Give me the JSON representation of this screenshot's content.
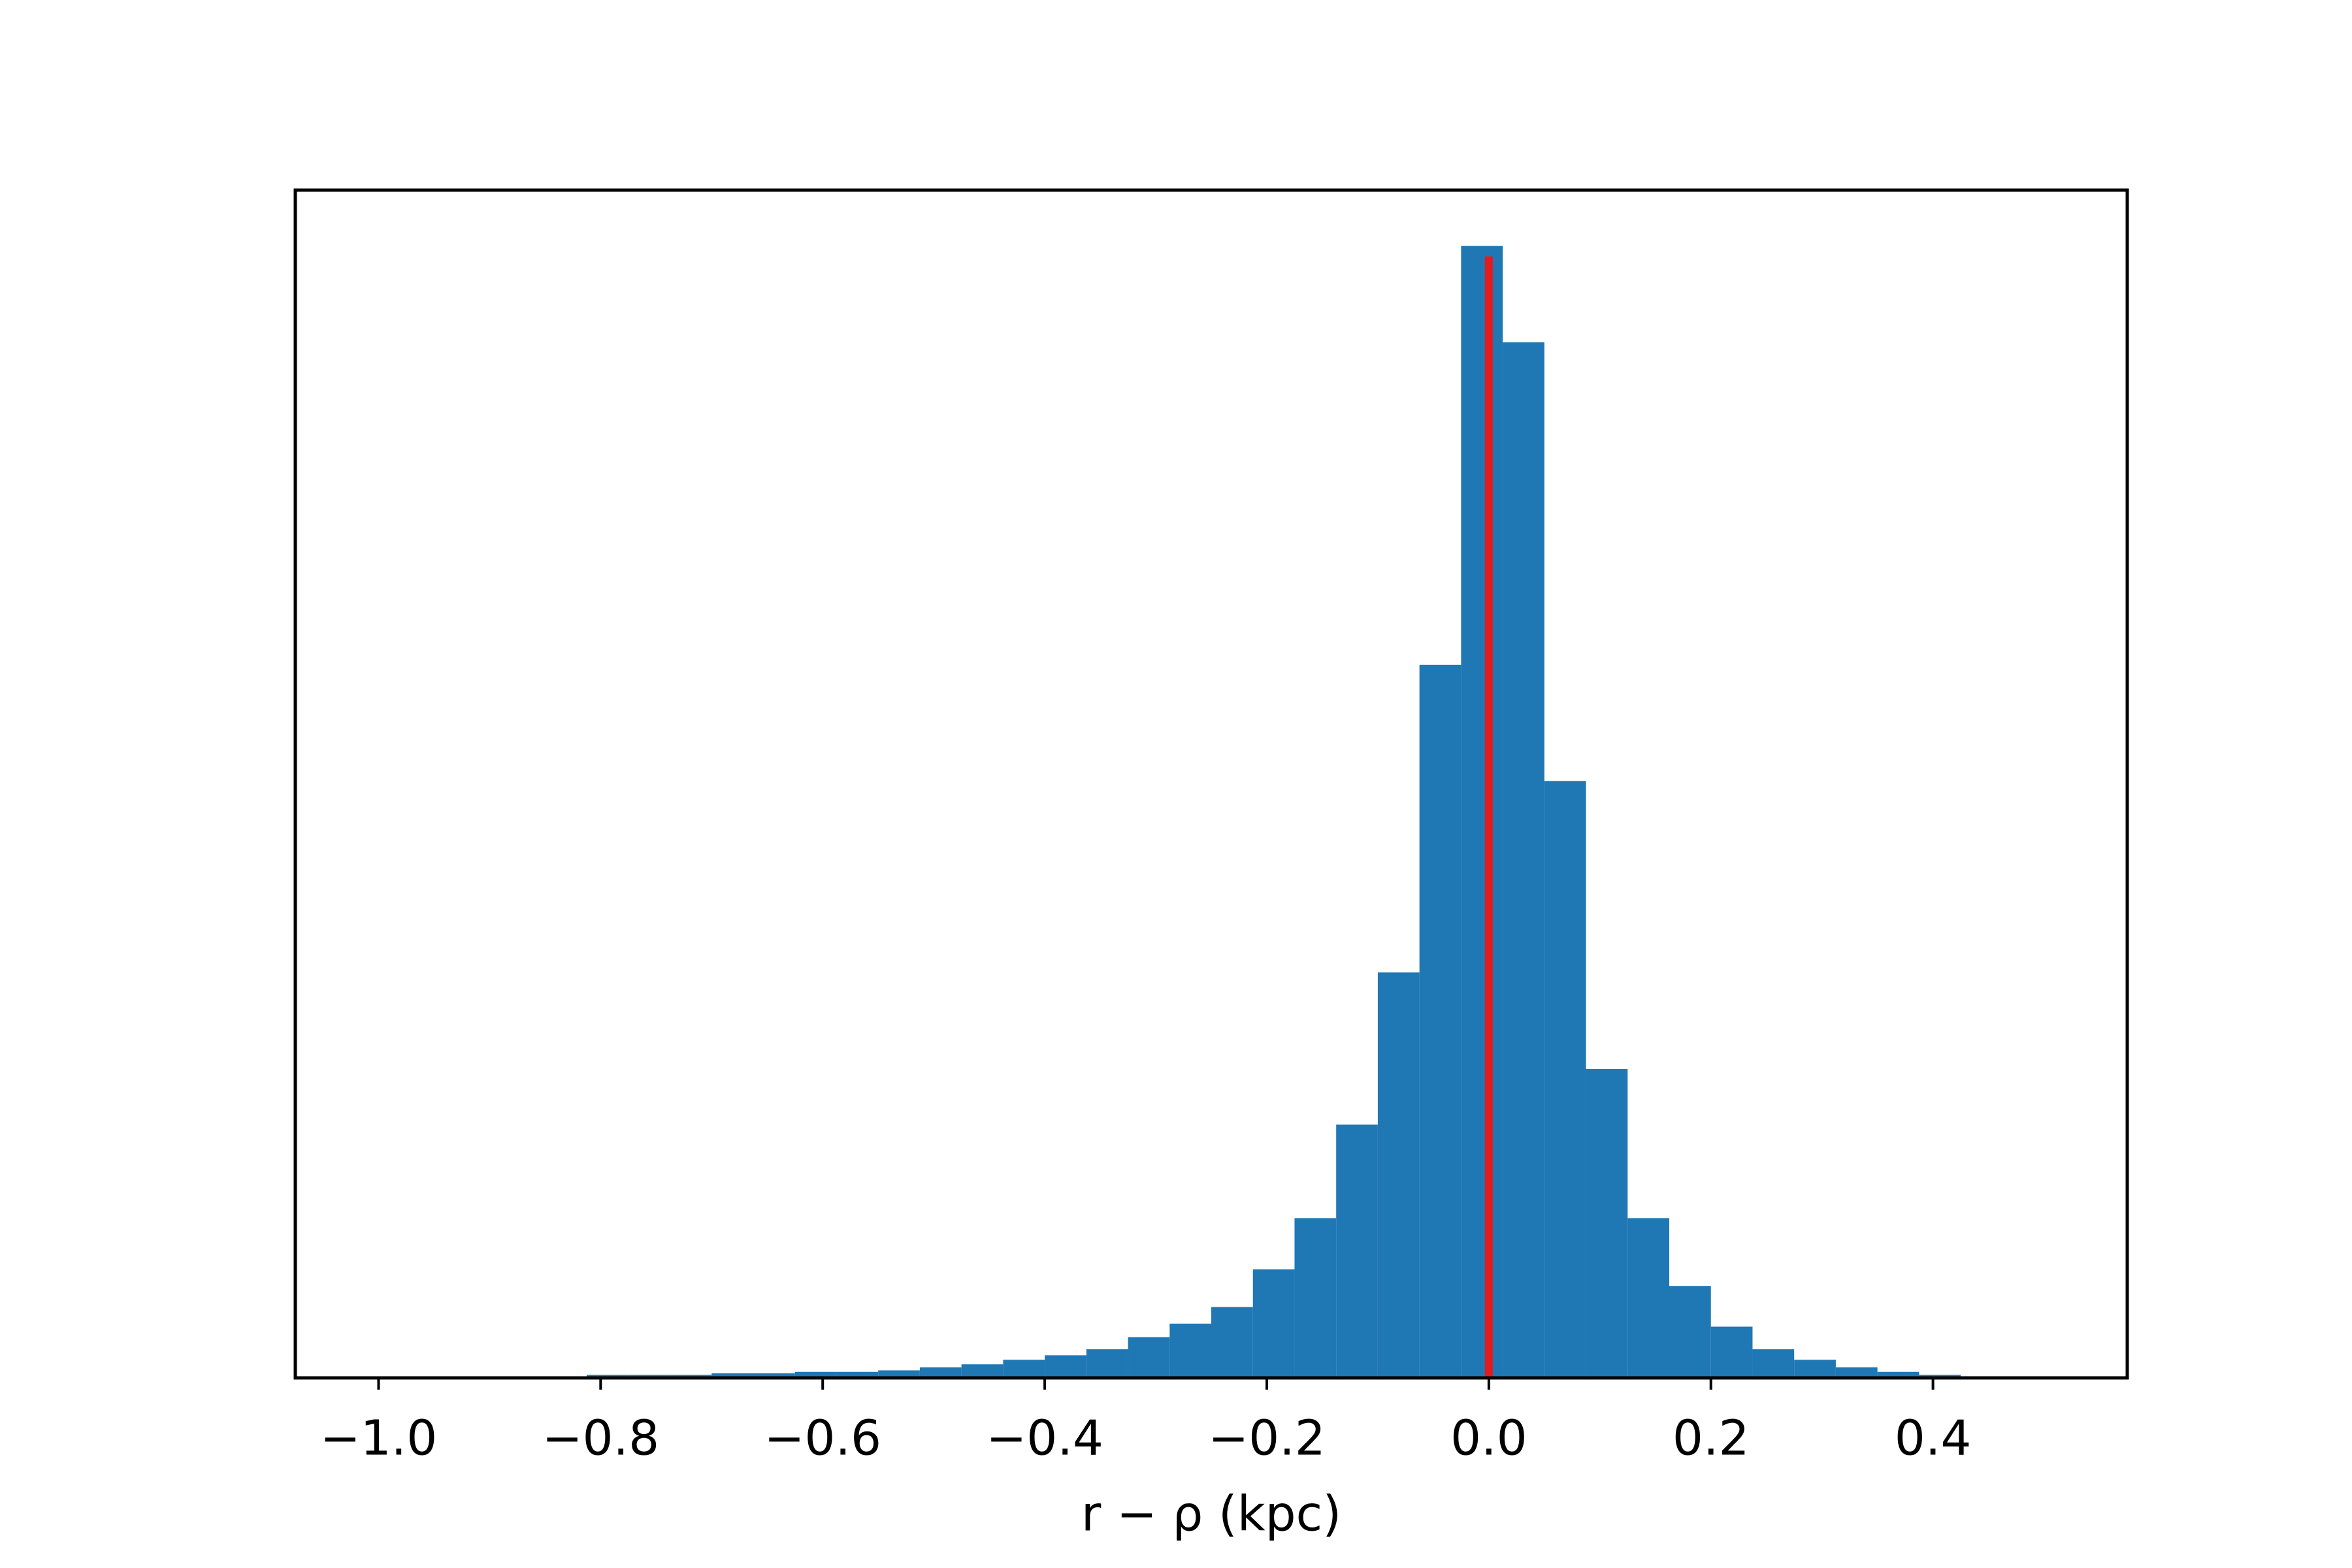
{
  "chart_data": {
    "type": "histogram",
    "xlabel": "r − ρ (kpc)",
    "bins": [
      -1,
      -0.9625,
      -0.925,
      -0.8875,
      -0.85,
      -0.8125,
      -0.775,
      -0.7375,
      -0.7,
      -0.6625,
      -0.625,
      -0.5875,
      -0.55,
      -0.5125,
      -0.475,
      -0.4375,
      -0.4,
      -0.3625,
      -0.325,
      -0.2875,
      -0.25,
      -0.2125,
      -0.175,
      -0.1375,
      -0.1,
      -0.0625,
      -0.025,
      0.0125,
      0.05,
      0.0875,
      0.125,
      0.1625,
      0.2,
      0.2375,
      0.275,
      0.3125,
      0.35,
      0.3875,
      0.425,
      0.4625,
      0.5
    ],
    "values": [
      0,
      0,
      1,
      1,
      1,
      2,
      2,
      2,
      3,
      3,
      4,
      4,
      5,
      7,
      9,
      12,
      15,
      19,
      27,
      36,
      47,
      72,
      106,
      168,
      269,
      473,
      751,
      687,
      396,
      205,
      106,
      61,
      34,
      19,
      12,
      7,
      4,
      2,
      1,
      1
    ],
    "color": "#1f77b4",
    "vline": {
      "x": 0,
      "ymax": 744,
      "color": "#e41a1c"
    },
    "xlim": [
      -1.075,
      0.575
    ],
    "ylim": [
      0,
      788
    ],
    "xticks": [
      {
        "value": -1.0,
        "label": "−1.0"
      },
      {
        "value": -0.8,
        "label": "−0.8"
      },
      {
        "value": -0.6,
        "label": "−0.6"
      },
      {
        "value": -0.4,
        "label": "−0.4"
      },
      {
        "value": -0.2,
        "label": "−0.2"
      },
      {
        "value": 0.0,
        "label": "0.0"
      },
      0.2,
      0.4
    ]
  }
}
